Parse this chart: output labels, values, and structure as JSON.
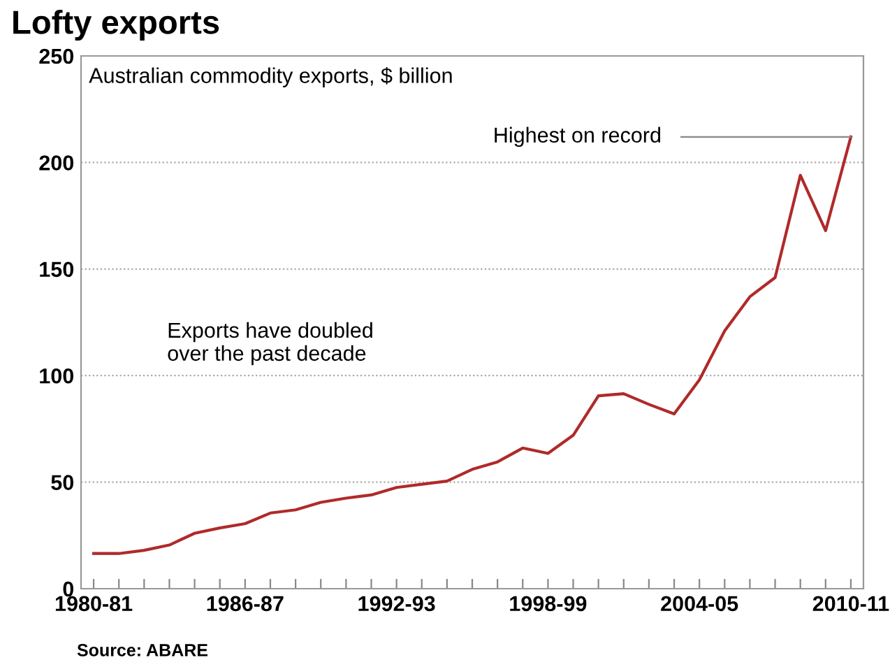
{
  "chart_data": {
    "type": "line",
    "title": "Lofty exports",
    "subtitle": "Australian commodity exports, $ billion",
    "categories": [
      "1980-81",
      null,
      null,
      null,
      null,
      null,
      "1986-87",
      null,
      null,
      null,
      null,
      null,
      "1992-93",
      null,
      null,
      null,
      null,
      null,
      "1998-99",
      null,
      null,
      null,
      null,
      null,
      "2004-05",
      null,
      null,
      null,
      null,
      null,
      "2010-11"
    ],
    "series": [
      {
        "color": "#b02a2a",
        "values": [
          16.5,
          16.5,
          18,
          20.5,
          26,
          28.5,
          30.5,
          35.5,
          37,
          40.5,
          42.5,
          44,
          47.5,
          49,
          50.5,
          56,
          59.5,
          66,
          63.5,
          72,
          90.5,
          91.5,
          86.5,
          82,
          98,
          121,
          137,
          146,
          194,
          168,
          212
        ]
      }
    ],
    "ylim": [
      0,
      250
    ],
    "yticks": [
      0,
      50,
      100,
      150,
      200,
      250
    ],
    "grid": "y",
    "legend": false,
    "marker": "none",
    "line_style": "solid",
    "annotations": [
      {
        "text": "Highest on record",
        "x": "2010-11",
        "y": 212
      },
      "Exports have doubled\nover the past decade",
      "Source: ABARE"
    ]
  }
}
